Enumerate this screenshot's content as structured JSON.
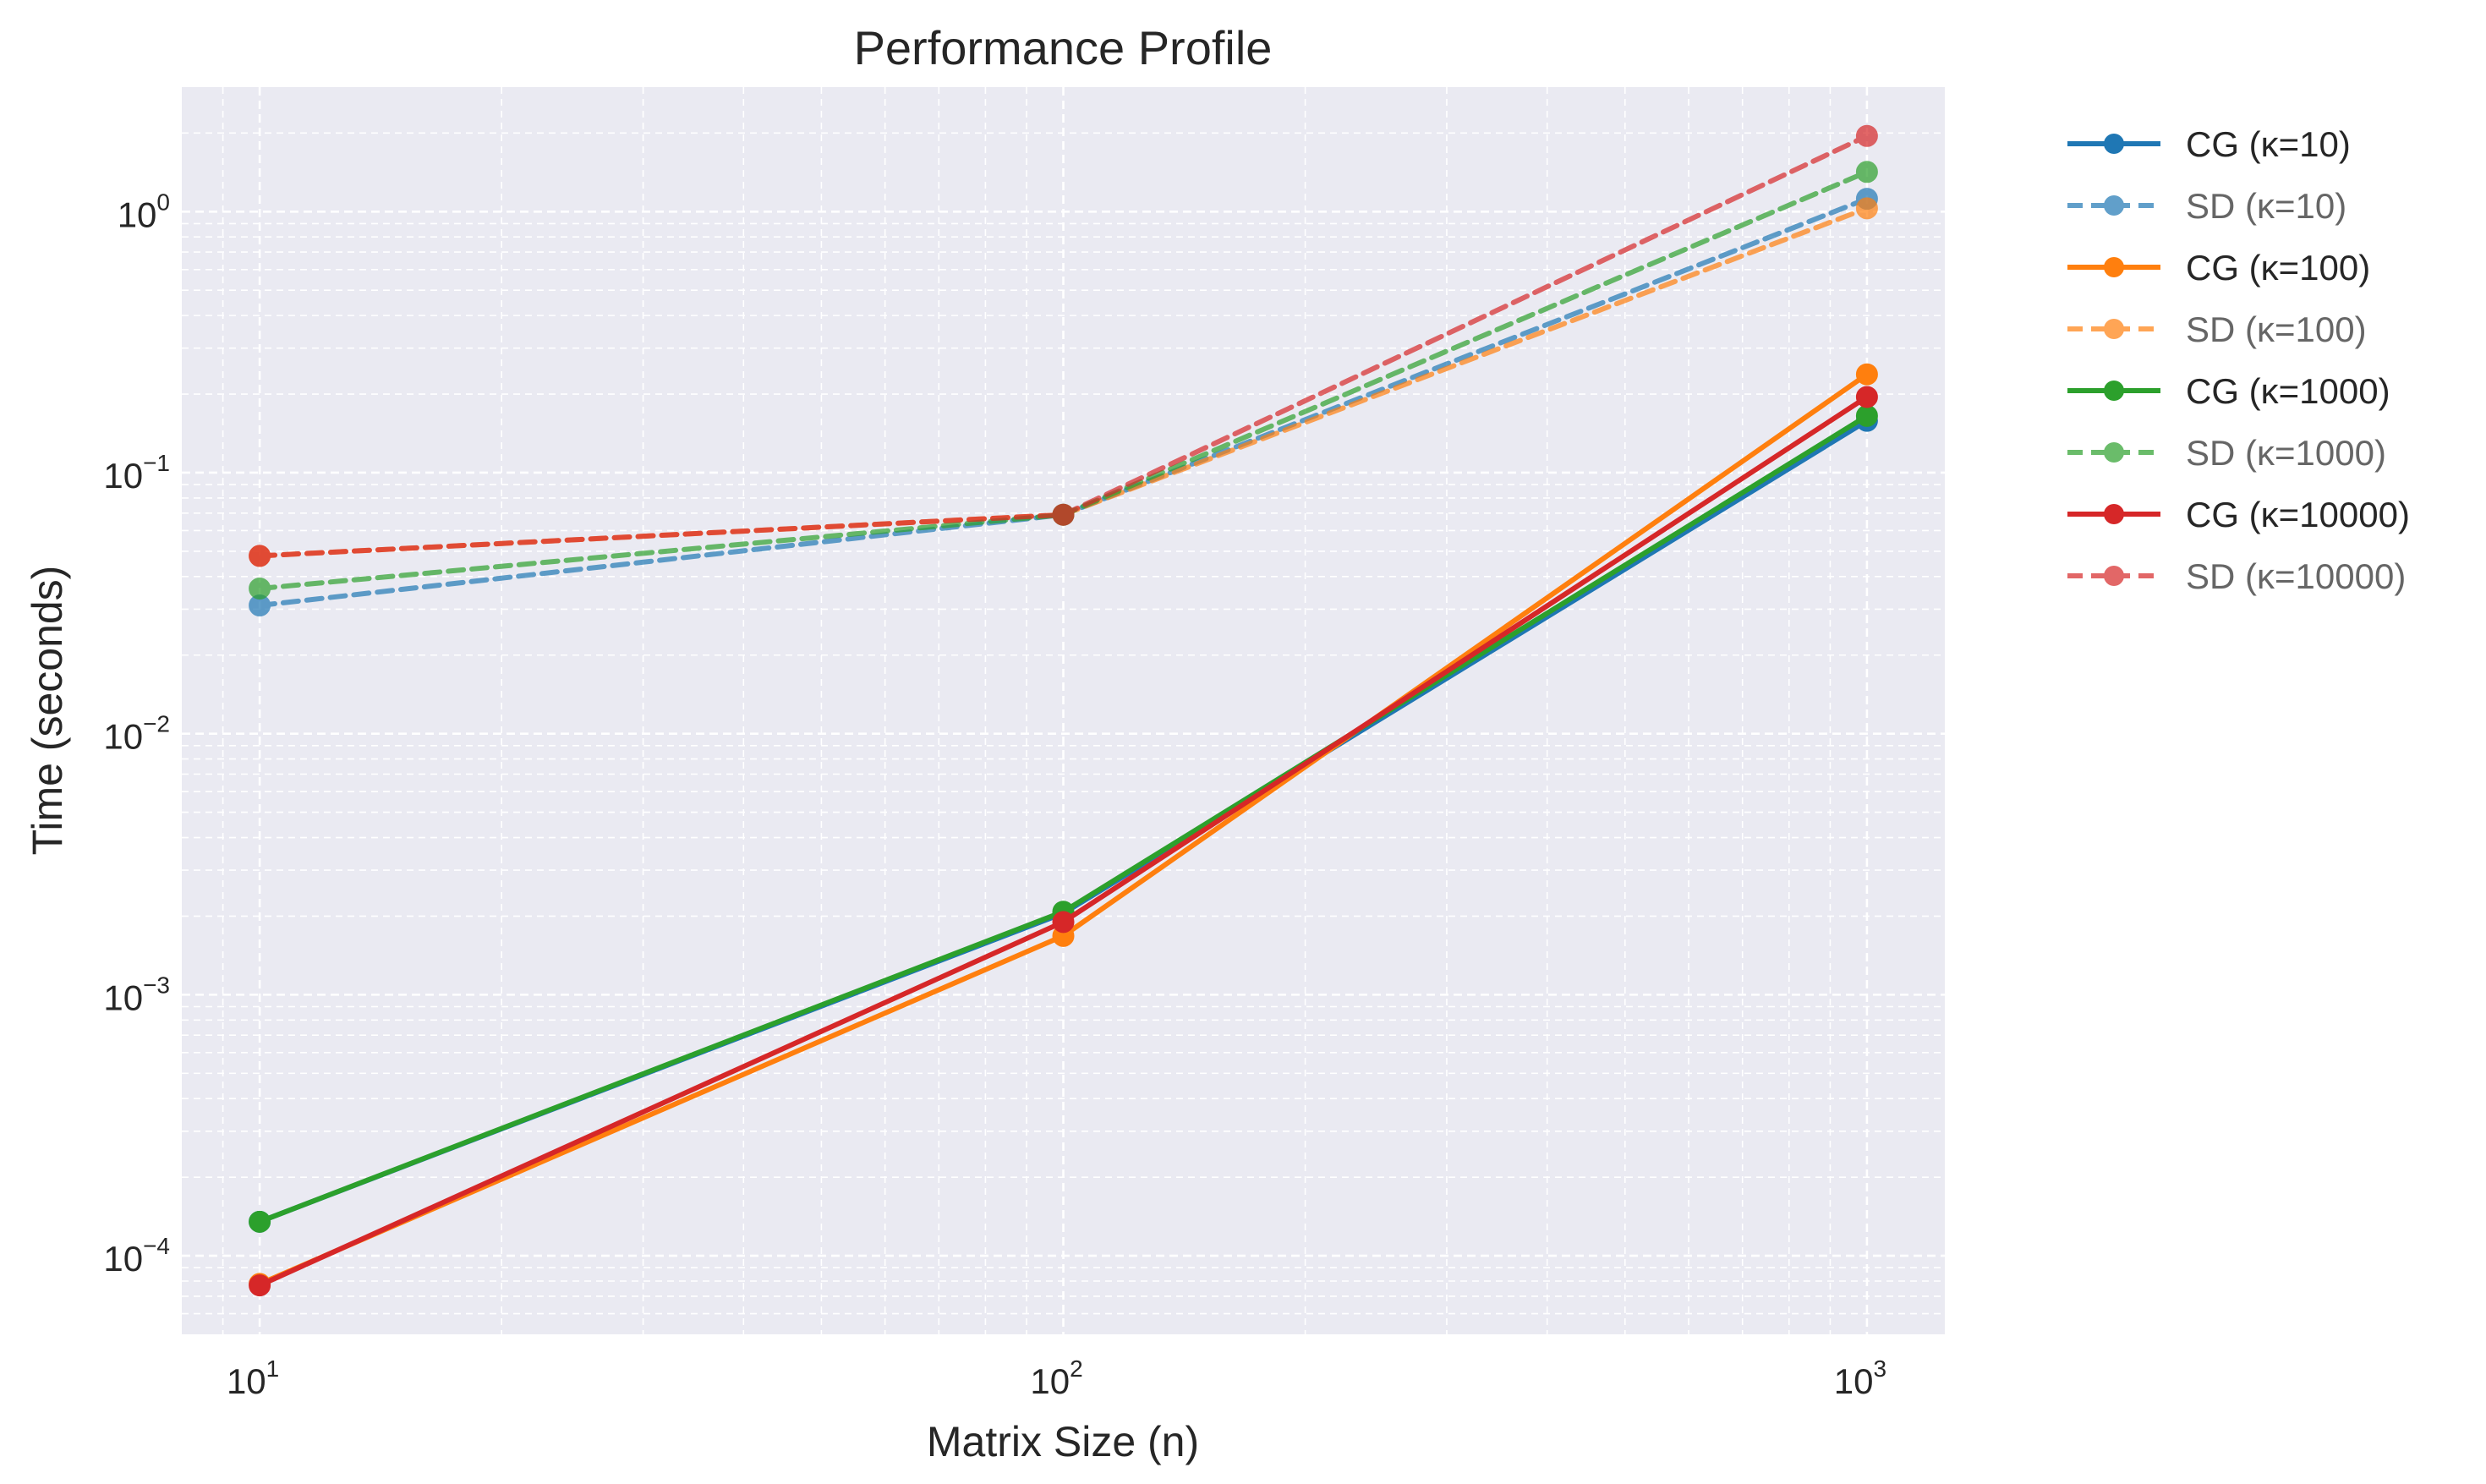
{
  "chart_data": {
    "type": "line",
    "title": "Performance Profile",
    "xlabel": "Matrix Size (n)",
    "ylabel": "Time (seconds)",
    "x_scale": "log",
    "y_scale": "log",
    "x": [
      10,
      100,
      1000
    ],
    "xlim": [
      8,
      1250
    ],
    "ylim": [
      5e-05,
      3
    ],
    "x_ticks": [
      {
        "value": 10,
        "base": "10",
        "exp": "1"
      },
      {
        "value": 100,
        "base": "10",
        "exp": "2"
      },
      {
        "value": 1000,
        "base": "10",
        "exp": "3"
      }
    ],
    "y_ticks": [
      {
        "value": 0.0001,
        "base": "10",
        "exp": "−4"
      },
      {
        "value": 0.001,
        "base": "10",
        "exp": "−3"
      },
      {
        "value": 0.01,
        "base": "10",
        "exp": "−2"
      },
      {
        "value": 0.1,
        "base": "10",
        "exp": "−1"
      },
      {
        "value": 1,
        "base": "10",
        "exp": "0"
      }
    ],
    "grid": true,
    "grid_minor": true,
    "background": "#eaeaf2",
    "legend_position": "outside-right-top",
    "series": [
      {
        "name": "CG (κ=10)",
        "style": "solid",
        "color": "#1f77b4",
        "values": [
          0.000135,
          0.00205,
          0.158
        ]
      },
      {
        "name": "SD (κ=10)",
        "style": "dashed",
        "color": "#1f77b4",
        "values": [
          0.031,
          0.069,
          1.12
        ]
      },
      {
        "name": "CG (κ=100)",
        "style": "solid",
        "color": "#ff7f0e",
        "values": [
          7.8e-05,
          0.00168,
          0.238
        ]
      },
      {
        "name": "SD (κ=100)",
        "style": "dashed",
        "color": "#ff7f0e",
        "values": [
          0.048,
          0.069,
          1.03
        ]
      },
      {
        "name": "CG (κ=1000)",
        "style": "solid",
        "color": "#2ca02c",
        "values": [
          0.000135,
          0.00208,
          0.165
        ]
      },
      {
        "name": "SD (κ=1000)",
        "style": "dashed",
        "color": "#2ca02c",
        "values": [
          0.036,
          0.069,
          1.42
        ]
      },
      {
        "name": "CG (κ=10000)",
        "style": "solid",
        "color": "#d62728",
        "values": [
          7.7e-05,
          0.0019,
          0.195
        ]
      },
      {
        "name": "SD (κ=10000)",
        "style": "dashed",
        "color": "#d62728",
        "values": [
          0.048,
          0.069,
          1.95
        ]
      }
    ]
  }
}
